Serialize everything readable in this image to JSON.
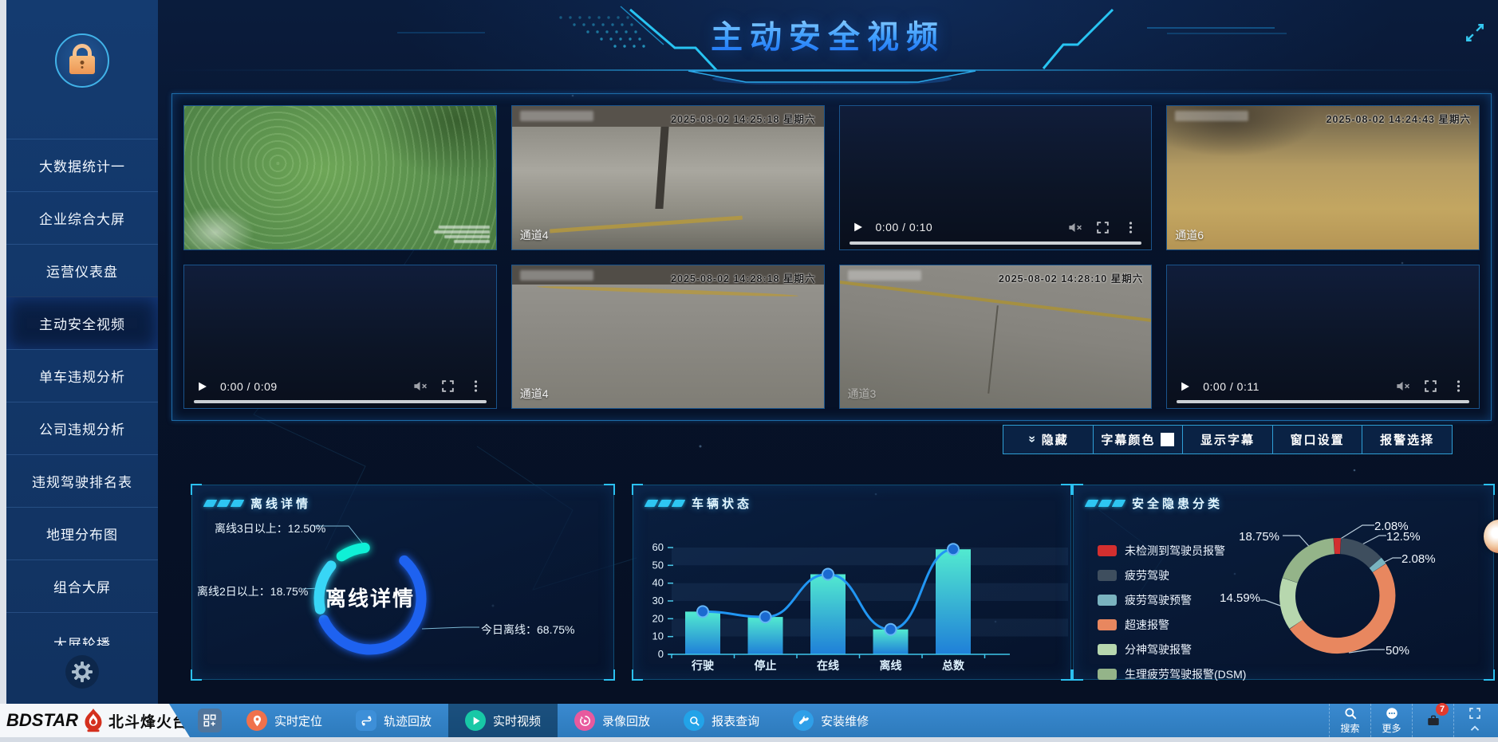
{
  "header": {
    "title": "主动安全视频"
  },
  "sidebar": {
    "items": [
      {
        "label": "大数据统计一"
      },
      {
        "label": "企业综合大屏"
      },
      {
        "label": "运营仪表盘"
      },
      {
        "label": "主动安全视频",
        "active": true
      },
      {
        "label": "单车违规分析"
      },
      {
        "label": "公司违规分析"
      },
      {
        "label": "违规驾驶排名表"
      },
      {
        "label": "地理分布图"
      },
      {
        "label": "组合大屏"
      },
      {
        "label": "大屏轮播",
        "clipped": true
      }
    ]
  },
  "video_wall": {
    "cells": [
      {
        "type": "camera",
        "variant": "trees",
        "timestamp": "",
        "channel": ""
      },
      {
        "type": "camera",
        "variant": "street",
        "timestamp": "2025-08-02 14:25:18 星期六",
        "channel": "通道4"
      },
      {
        "type": "player",
        "time": "0:00 / 0:10"
      },
      {
        "type": "camera",
        "variant": "amber",
        "timestamp": "2025-08-02 14:24:43 星期六",
        "channel": "通道6"
      },
      {
        "type": "player",
        "time": "0:00 / 0:09"
      },
      {
        "type": "camera",
        "variant": "pave",
        "timestamp": "2025-08-02 14:28:18 星期六",
        "channel": "通道4"
      },
      {
        "type": "camera",
        "variant": "pave2",
        "timestamp": "2025-08-02 14:28:10 星期六",
        "channel": "通道3",
        "faint": true
      },
      {
        "type": "player",
        "time": "0:00 / 0:11"
      }
    ]
  },
  "subtitle_controls": {
    "buttons": [
      {
        "label": "隐藏",
        "icon": "double-chevron-down-icon"
      },
      {
        "label": "字幕颜色",
        "swatch": "#ffffff"
      },
      {
        "label": "显示字幕"
      },
      {
        "label": "窗口设置"
      },
      {
        "label": "报警选择"
      }
    ]
  },
  "panels": {
    "offline": {
      "title": "离线详情"
    },
    "vehicle": {
      "title": "车辆状态"
    },
    "hazard": {
      "title": "安全隐患分类"
    }
  },
  "chart_data": [
    {
      "type": "donut",
      "title": "离线详情",
      "center_label": "离线详情",
      "legend_position": "callout-labels",
      "slices": [
        {
          "label": "今日离线",
          "value": 68.75,
          "display": "今日离线：68.75%",
          "color": "#1e62f0",
          "arc": [
            42,
            245
          ]
        },
        {
          "label": "离线2日以上",
          "value": 18.75,
          "display": "离线2日以上：18.75%",
          "color": "#38d6f6",
          "arc": [
            258,
            310
          ]
        },
        {
          "label": "离线3日以上",
          "value": 12.5,
          "display": "离线3日以上：12.50%",
          "color": "#0ff0d6",
          "arc": [
            326,
            354
          ]
        }
      ]
    },
    {
      "type": "bar",
      "title": "车辆状态",
      "categories": [
        "行驶",
        "停止",
        "在线",
        "离线",
        "总数"
      ],
      "values": [
        24,
        21,
        45,
        14,
        59
      ],
      "line_overlay": true,
      "ylim": [
        0,
        60
      ],
      "ytick_step": 10,
      "grid": "striped-bands",
      "bar_color_top": "#52ead0",
      "bar_color_bottom": "#1f7fd8",
      "line_color": "#2196f3"
    },
    {
      "type": "donut",
      "title": "安全隐患分类",
      "legend_position": "left",
      "slices": [
        {
          "label": "未检测到驾驶员报警",
          "value": 2.08,
          "display": "2.08%",
          "color": "#d32f2f"
        },
        {
          "label": "疲劳驾驶",
          "value": 12.5,
          "display": "12.5%",
          "color": "#3e4e5e"
        },
        {
          "label": "疲劳驾驶预警",
          "value": 2.08,
          "display": "2.08%",
          "color": "#7ab3bf"
        },
        {
          "label": "超速报警",
          "value": 50,
          "display": "50%",
          "color": "#e8875f"
        },
        {
          "label": "分神驾驶报警",
          "value": 14.59,
          "display": "14.59%",
          "color": "#b7d7ae"
        },
        {
          "label": "生理疲劳驾驶报警(DSM)",
          "value": 18.75,
          "display": "18.75%",
          "color": "#94b489"
        }
      ]
    }
  ],
  "bottom_bar": {
    "logo": {
      "en": "BDSTAR",
      "cn": "北斗烽火台",
      "flame_icon": "flame-icon",
      "flame_color": "#d4301e"
    },
    "apps_button_icon": "apps-grid-icon",
    "nav": [
      {
        "icon": "pin-icon",
        "label": "实时定位",
        "color": "#f0714c"
      },
      {
        "icon": "route-icon",
        "label": "轨迹回放",
        "color": "#3d8fd8",
        "square": true
      },
      {
        "icon": "play-icon",
        "label": "实时视频",
        "color": "#18c8a6",
        "active": true
      },
      {
        "icon": "replay-icon",
        "label": "录像回放",
        "color": "#e85a9e"
      },
      {
        "icon": "report-icon",
        "label": "报表查询",
        "color": "#22a3e8"
      },
      {
        "icon": "wrench-icon",
        "label": "安装维修",
        "color": "#2f9fe8"
      }
    ],
    "right": [
      {
        "icon": "search-icon",
        "label": "搜索"
      },
      {
        "icon": "more-icon",
        "label": "更多"
      },
      {
        "icon": "briefcase-icon",
        "badge": "7"
      },
      {
        "icon": "expand-corners-icon",
        "second_icon": "chevron-up-icon"
      }
    ]
  }
}
